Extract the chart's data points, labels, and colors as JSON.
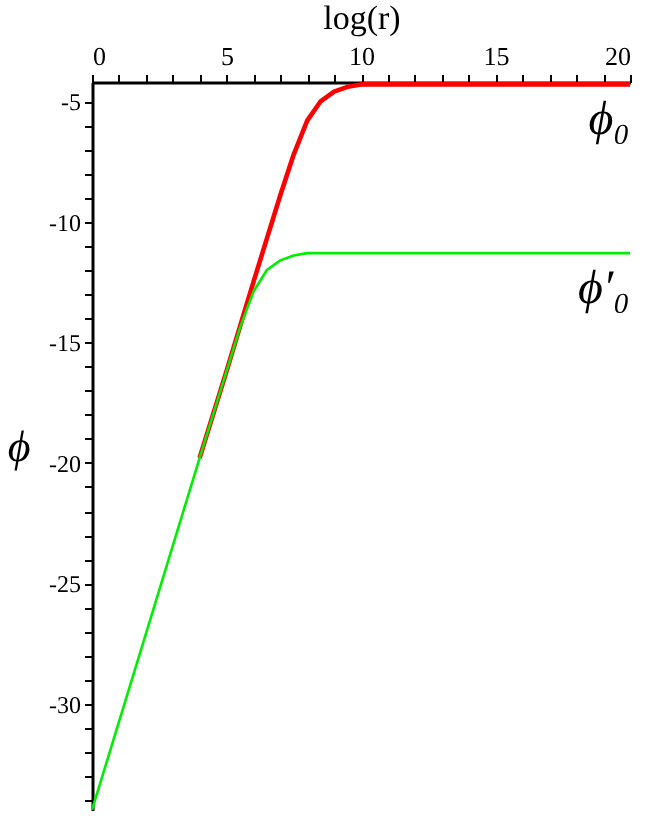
{
  "chart_data": {
    "type": "line",
    "xlabel": "log(r)",
    "ylabel": "ϕ",
    "xlim": [
      0,
      20
    ],
    "ylim": [
      -34.4,
      -4.2
    ],
    "xticks": [
      0,
      {
        "value": 1,
        "label": null
      },
      {
        "value": 2,
        "label": null
      },
      {
        "value": 3,
        "label": null
      },
      {
        "value": 4,
        "label": null
      },
      5,
      {
        "value": 6,
        "label": null
      },
      {
        "value": 7,
        "label": null
      },
      {
        "value": 8,
        "label": null
      },
      {
        "value": 9,
        "label": null
      },
      10,
      {
        "value": 11,
        "label": null
      },
      {
        "value": 12,
        "label": null
      },
      {
        "value": 13,
        "label": null
      },
      {
        "value": 14,
        "label": null
      },
      15,
      {
        "value": 16,
        "label": null
      },
      {
        "value": 17,
        "label": null
      },
      {
        "value": 18,
        "label": null
      },
      {
        "value": 19,
        "label": null
      },
      20
    ],
    "yticks": [
      {
        "value": -34,
        "label": null
      },
      {
        "value": -33,
        "label": null
      },
      {
        "value": -32,
        "label": null
      },
      {
        "value": -31,
        "label": null
      },
      -30,
      {
        "value": -29,
        "label": null
      },
      {
        "value": -28,
        "label": null
      },
      {
        "value": -27,
        "label": null
      },
      {
        "value": -26,
        "label": null
      },
      -25,
      {
        "value": -24,
        "label": null
      },
      {
        "value": -23,
        "label": null
      },
      {
        "value": -22,
        "label": null
      },
      {
        "value": -21,
        "label": null
      },
      -20,
      {
        "value": -19,
        "label": null
      },
      {
        "value": -18,
        "label": null
      },
      {
        "value": -17,
        "label": null
      },
      {
        "value": -16,
        "label": null
      },
      -15,
      {
        "value": -14,
        "label": null
      },
      {
        "value": -13,
        "label": null
      },
      {
        "value": -12,
        "label": null
      },
      {
        "value": -11,
        "label": null
      },
      -10,
      {
        "value": -9,
        "label": null
      },
      {
        "value": -8,
        "label": null
      },
      {
        "value": -7,
        "label": null
      },
      {
        "value": -6,
        "label": null
      },
      -5
    ],
    "marker": "none",
    "line_style": "solid",
    "series": [
      {
        "color": "#ff0000",
        "x": [
          4,
          5,
          6,
          6.5,
          7,
          7.5,
          8,
          8.5,
          9,
          9.5,
          10,
          20
        ],
        "values": [
          -19.8,
          -16.2,
          -12.5,
          -10.7,
          -8.9,
          -7.2,
          -5.8,
          -5.0,
          -4.6,
          -4.4,
          -4.3,
          -4.3
        ]
      },
      {
        "color": "#00ee00",
        "x": [
          0,
          2,
          4,
          5,
          5.5,
          6,
          6.5,
          7,
          7.5,
          8,
          20
        ],
        "values": [
          -34.4,
          -27.1,
          -19.8,
          -16.2,
          -14.4,
          -12.9,
          -12.0,
          -11.6,
          -11.4,
          -11.3,
          -11.3
        ]
      }
    ],
    "annotations": [
      "ϕ₀",
      "ϕ′₀"
    ]
  }
}
